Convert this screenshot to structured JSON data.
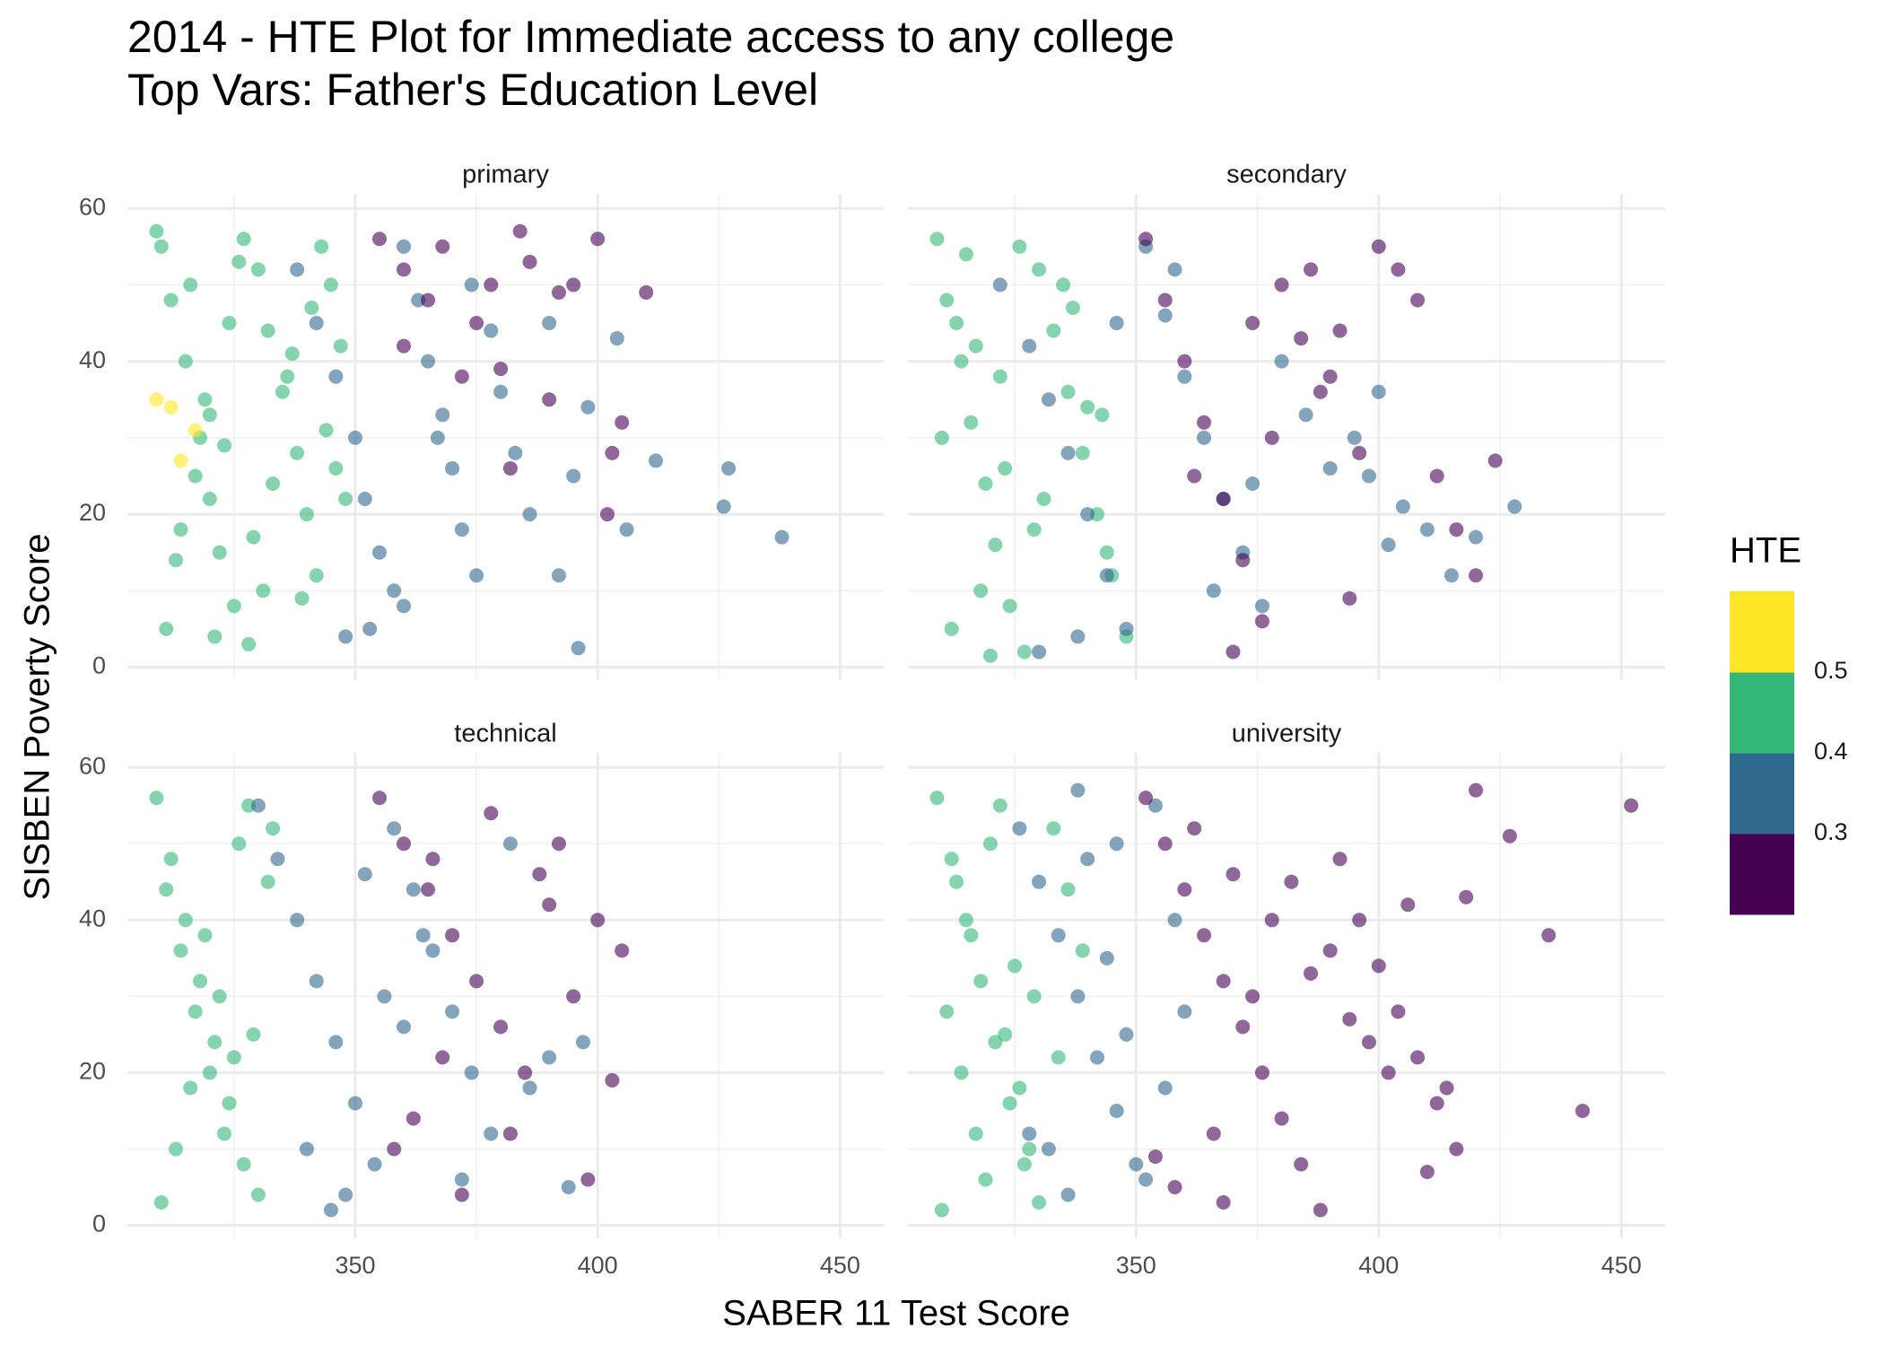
{
  "chart_data": {
    "type": "scatter",
    "title": "2014 - HTE Plot for Immediate access to any college",
    "subtitle": "Top Vars: Father's Education Level",
    "x_label": "SABER 11 Test Score",
    "y_label": "SISBEN Poverty Score",
    "xlim": [
      303,
      459
    ],
    "ylim": [
      -1.7,
      61.9
    ],
    "xticks": [
      350,
      400,
      450
    ],
    "yticks": [
      0,
      20,
      40,
      60
    ],
    "minor_xticks": [
      325,
      375,
      425
    ],
    "minor_yticks": [
      10,
      30,
      50
    ],
    "grid": true,
    "opacity": 0.6,
    "colorbar": {
      "title": "HTE",
      "lim": [
        0.2,
        0.6
      ],
      "ticks": [
        0.3,
        0.4,
        0.5
      ],
      "colors": [
        "#440154",
        "#31688e",
        "#35b779",
        "#fde725"
      ]
    },
    "facets": [
      {
        "label": "primary",
        "series": [
          {
            "color": "#35b779",
            "x": [
              310,
              312,
              315,
              318,
              320,
              322,
              325,
              328,
              330,
              332,
              335,
              338,
              340,
              342,
              345,
              347,
              311,
              314,
              317,
              320,
              324,
              327,
              331,
              336,
              341,
              346,
              313,
              319,
              326,
              333,
              339,
              344,
              309,
              316,
              323,
              329,
              337,
              343,
              348,
              321
            ],
            "y": [
              55,
              48,
              40,
              30,
              22,
              15,
              8,
              3,
              52,
              44,
              36,
              28,
              20,
              12,
              50,
              42,
              5,
              18,
              25,
              33,
              45,
              56,
              10,
              38,
              47,
              26,
              14,
              35,
              53,
              24,
              9,
              31,
              57,
              50,
              29,
              17,
              41,
              55,
              22,
              4
            ]
          },
          {
            "color": "#31688e",
            "x": [
              338,
              342,
              346,
              350,
              352,
              355,
              358,
              360,
              363,
              365,
              368,
              370,
              372,
              375,
              378,
              380,
              383,
              386,
              390,
              392,
              395,
              398,
              404,
              406,
              412,
              426,
              427,
              438,
              353,
              360,
              367,
              374,
              348,
              396
            ],
            "y": [
              52,
              45,
              38,
              30,
              22,
              15,
              10,
              55,
              48,
              40,
              33,
              26,
              18,
              12,
              44,
              36,
              28,
              20,
              45,
              12,
              25,
              34,
              43,
              18,
              27,
              21,
              26,
              17,
              5,
              8,
              30,
              50,
              4,
              2.5
            ]
          },
          {
            "color": "#440154",
            "x": [
              355,
              360,
              365,
              368,
              372,
              375,
              378,
              380,
              382,
              384,
              386,
              390,
              392,
              395,
              400,
              402,
              403,
              405,
              410,
              360
            ],
            "y": [
              56,
              52,
              48,
              55,
              38,
              45,
              50,
              39,
              26,
              57,
              53,
              35,
              49,
              50,
              56,
              20,
              28,
              32,
              49,
              42
            ]
          },
          {
            "color": "#fde725",
            "x": [
              309,
              312,
              314,
              317
            ],
            "y": [
              35,
              34,
              27,
              31
            ]
          }
        ]
      },
      {
        "label": "secondary",
        "series": [
          {
            "color": "#35b779",
            "x": [
              309,
              311,
              314,
              316,
              319,
              321,
              324,
              327,
              330,
              333,
              336,
              339,
              342,
              345,
              348,
              310,
              313,
              318,
              322,
              326,
              331,
              335,
              340,
              344,
              312,
              317,
              323,
              329,
              337,
              343,
              315,
              320
            ],
            "y": [
              56,
              48,
              40,
              32,
              24,
              16,
              8,
              2,
              52,
              44,
              36,
              28,
              20,
              12,
              4,
              30,
              45,
              10,
              38,
              55,
              22,
              50,
              34,
              15,
              5,
              42,
              26,
              18,
              47,
              33,
              54,
              1.5
            ]
          },
          {
            "color": "#31688e",
            "x": [
              322,
              328,
              332,
              336,
              340,
              344,
              348,
              352,
              356,
              360,
              364,
              368,
              372,
              376,
              380,
              385,
              390,
              395,
              400,
              405,
              410,
              415,
              420,
              428,
              398,
              402,
              330,
              338,
              346,
              358,
              366,
              374
            ],
            "y": [
              50,
              42,
              35,
              28,
              20,
              12,
              5,
              55,
              46,
              38,
              30,
              22,
              15,
              8,
              40,
              33,
              26,
              30,
              36,
              21,
              18,
              12,
              17,
              21,
              25,
              16,
              2,
              4,
              45,
              52,
              10,
              24
            ]
          },
          {
            "color": "#440154",
            "x": [
              352,
              356,
              360,
              364,
              368,
              372,
              376,
              380,
              384,
              388,
              392,
              396,
              400,
              404,
              408,
              412,
              416,
              420,
              424,
              370,
              378,
              386,
              394,
              362,
              374,
              390
            ],
            "y": [
              56,
              48,
              40,
              32,
              22,
              14,
              6,
              50,
              43,
              36,
              44,
              28,
              55,
              52,
              48,
              25,
              18,
              12,
              27,
              2,
              30,
              52,
              9,
              25,
              45,
              38
            ]
          }
        ]
      },
      {
        "label": "technical",
        "series": [
          {
            "color": "#35b779",
            "x": [
              309,
              312,
              315,
              318,
              321,
              324,
              327,
              330,
              333,
              311,
              314,
              317,
              320,
              323,
              326,
              329,
              310,
              316,
              322,
              328,
              313,
              319,
              325,
              332
            ],
            "y": [
              56,
              48,
              40,
              32,
              24,
              16,
              8,
              4,
              52,
              44,
              36,
              28,
              20,
              12,
              50,
              25,
              3,
              18,
              30,
              55,
              10,
              38,
              22,
              45
            ]
          },
          {
            "color": "#31688e",
            "x": [
              330,
              334,
              338,
              342,
              346,
              350,
              354,
              358,
              362,
              366,
              370,
              374,
              378,
              382,
              386,
              390,
              394,
              397,
              340,
              348,
              356,
              364,
              372,
              345,
              352,
              360
            ],
            "y": [
              55,
              48,
              40,
              32,
              24,
              16,
              8,
              52,
              44,
              36,
              28,
              20,
              12,
              50,
              18,
              22,
              5,
              24,
              10,
              4,
              30,
              38,
              6,
              2,
              46,
              26
            ]
          },
          {
            "color": "#440154",
            "x": [
              355,
              360,
              365,
              370,
              375,
              380,
              385,
              390,
              395,
              400,
              405,
              358,
              368,
              378,
              388,
              398,
              362,
              372,
              382,
              392,
              403,
              366
            ],
            "y": [
              56,
              50,
              44,
              38,
              32,
              26,
              20,
              42,
              30,
              40,
              36,
              10,
              22,
              54,
              46,
              6,
              14,
              4,
              12,
              50,
              19,
              48
            ]
          }
        ]
      },
      {
        "label": "university",
        "series": [
          {
            "color": "#35b779",
            "x": [
              309,
              312,
              315,
              318,
              321,
              324,
              327,
              330,
              333,
              336,
              339,
              311,
              314,
              317,
              320,
              323,
              326,
              329,
              310,
              316,
              322,
              328,
              334,
              313,
              319,
              325
            ],
            "y": [
              56,
              48,
              40,
              32,
              24,
              16,
              8,
              3,
              52,
              44,
              36,
              28,
              20,
              12,
              50,
              25,
              18,
              30,
              2,
              38,
              55,
              10,
              22,
              45,
              6,
              34
            ]
          },
          {
            "color": "#31688e",
            "x": [
              326,
              330,
              334,
              338,
              342,
              346,
              350,
              354,
              358,
              332,
              340,
              348,
              356,
              336,
              344,
              352,
              328,
              360,
              338,
              346
            ],
            "y": [
              52,
              45,
              38,
              30,
              22,
              15,
              8,
              55,
              40,
              10,
              48,
              25,
              18,
              4,
              35,
              6,
              12,
              28,
              57,
              50
            ]
          },
          {
            "color": "#440154",
            "x": [
              352,
              356,
              360,
              364,
              368,
              372,
              376,
              380,
              384,
              388,
              392,
              396,
              400,
              404,
              408,
              412,
              416,
              420,
              427,
              435,
              442,
              452,
              358,
              366,
              374,
              382,
              390,
              398,
              406,
              414,
              362,
              370,
              378,
              386,
              394,
              402,
              410,
              418,
              354,
              368
            ],
            "y": [
              56,
              50,
              44,
              38,
              32,
              26,
              20,
              14,
              8,
              2,
              48,
              40,
              34,
              28,
              22,
              16,
              10,
              57,
              51,
              38,
              15,
              55,
              5,
              12,
              30,
              45,
              36,
              24,
              42,
              18,
              52,
              46,
              40,
              33,
              27,
              20,
              7,
              43,
              9,
              3
            ]
          }
        ]
      }
    ]
  }
}
